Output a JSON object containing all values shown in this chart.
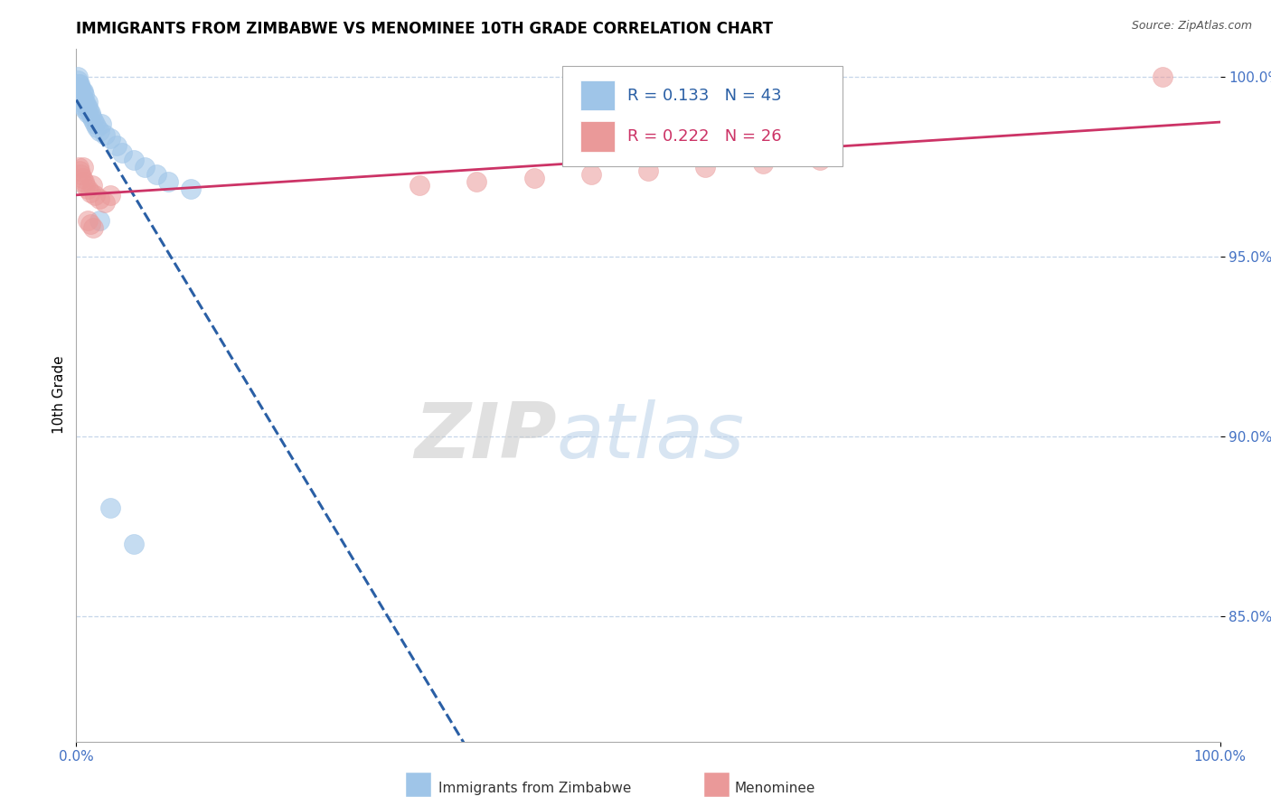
{
  "title": "IMMIGRANTS FROM ZIMBABWE VS MENOMINEE 10TH GRADE CORRELATION CHART",
  "source_text": "Source: ZipAtlas.com",
  "ylabel": "10th Grade",
  "xlim": [
    0.0,
    1.0
  ],
  "ylim": [
    0.815,
    1.008
  ],
  "yticks": [
    0.85,
    0.9,
    0.95,
    1.0
  ],
  "ytick_labels": [
    "85.0%",
    "90.0%",
    "95.0%",
    "100.0%"
  ],
  "xticks": [
    0.0,
    1.0
  ],
  "xtick_labels": [
    "0.0%",
    "100.0%"
  ],
  "legend_r1": "R = 0.133",
  "legend_n1": "N = 43",
  "legend_r2": "R = 0.222",
  "legend_n2": "N = 26",
  "blue_color": "#9fc5e8",
  "pink_color": "#ea9999",
  "blue_line_color": "#2a5fa5",
  "pink_line_color": "#cc3366",
  "watermark_zip": "ZIP",
  "watermark_atlas": "atlas",
  "blue_scatter_x": [
    0.001,
    0.001,
    0.002,
    0.002,
    0.002,
    0.003,
    0.003,
    0.003,
    0.004,
    0.004,
    0.004,
    0.005,
    0.005,
    0.006,
    0.006,
    0.006,
    0.007,
    0.007,
    0.008,
    0.008,
    0.009,
    0.01,
    0.01,
    0.011,
    0.012,
    0.013,
    0.015,
    0.016,
    0.018,
    0.02,
    0.022,
    0.025,
    0.03,
    0.035,
    0.04,
    0.05,
    0.06,
    0.07,
    0.08,
    0.1,
    0.02,
    0.03,
    0.05
  ],
  "blue_scatter_y": [
    1.0,
    0.999,
    0.998,
    0.997,
    0.996,
    0.998,
    0.996,
    0.994,
    0.997,
    0.995,
    0.993,
    0.996,
    0.994,
    0.996,
    0.994,
    0.992,
    0.995,
    0.993,
    0.993,
    0.991,
    0.992,
    0.993,
    0.99,
    0.991,
    0.99,
    0.989,
    0.988,
    0.987,
    0.986,
    0.985,
    0.987,
    0.984,
    0.983,
    0.981,
    0.979,
    0.977,
    0.975,
    0.973,
    0.971,
    0.969,
    0.96,
    0.88,
    0.87
  ],
  "pink_scatter_x": [
    0.002,
    0.003,
    0.004,
    0.005,
    0.006,
    0.007,
    0.008,
    0.01,
    0.012,
    0.014,
    0.016,
    0.02,
    0.025,
    0.3,
    0.35,
    0.4,
    0.45,
    0.5,
    0.55,
    0.6,
    0.65,
    0.01,
    0.012,
    0.015,
    0.95,
    0.03
  ],
  "pink_scatter_y": [
    0.975,
    0.974,
    0.973,
    0.972,
    0.975,
    0.971,
    0.97,
    0.969,
    0.968,
    0.97,
    0.967,
    0.966,
    0.965,
    0.97,
    0.971,
    0.972,
    0.973,
    0.974,
    0.975,
    0.976,
    0.977,
    0.96,
    0.959,
    0.958,
    1.0,
    0.967
  ],
  "title_fontsize": 12,
  "axis_label_fontsize": 11,
  "tick_fontsize": 11,
  "legend_fontsize": 13
}
